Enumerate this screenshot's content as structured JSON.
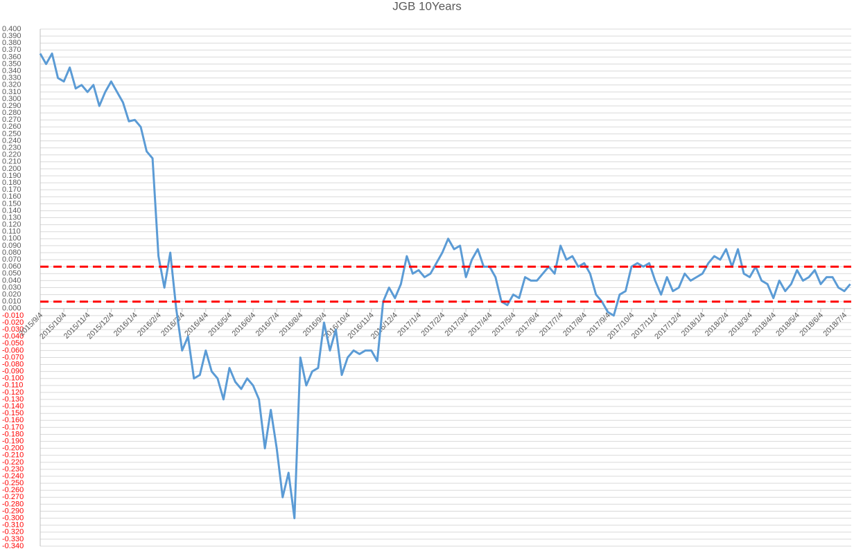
{
  "chart_data": {
    "type": "line",
    "title": "JGB 10Years",
    "categories": [
      "2015/9/4",
      null,
      null,
      null,
      "2015/10/4",
      null,
      null,
      null,
      "2015/11/4",
      null,
      null,
      null,
      "2015/12/4",
      null,
      null,
      null,
      "2016/1/4",
      null,
      null,
      null,
      "2016/2/4",
      null,
      null,
      null,
      "2016/3/4",
      null,
      null,
      null,
      "2016/4/4",
      null,
      null,
      null,
      "2016/5/4",
      null,
      null,
      null,
      "2016/6/4",
      null,
      null,
      null,
      "2016/7/4",
      null,
      null,
      null,
      "2016/8/4",
      null,
      null,
      null,
      "2016/9/4",
      null,
      null,
      null,
      "2016/10/4",
      null,
      null,
      null,
      "2016/11/4",
      null,
      null,
      null,
      "2016/12/4",
      null,
      null,
      null,
      "2017/1/4",
      null,
      null,
      null,
      "2017/2/4",
      null,
      null,
      null,
      "2017/3/4",
      null,
      null,
      null,
      "2017/4/4",
      null,
      null,
      null,
      "2017/5/4",
      null,
      null,
      null,
      "2017/6/4",
      null,
      null,
      null,
      "2017/7/4",
      null,
      null,
      null,
      "2017/8/4",
      null,
      null,
      null,
      "2017/9/4",
      null,
      null,
      null,
      "2017/10/4",
      null,
      null,
      null,
      "2017/11/4",
      null,
      null,
      null,
      "2017/12/4",
      null,
      null,
      null,
      "2018/1/4",
      null,
      null,
      null,
      "2018/2/4",
      null,
      null,
      null,
      "2018/3/4",
      null,
      null,
      null,
      "2018/4/4",
      null,
      null,
      null,
      "2018/5/4",
      null,
      null,
      null,
      "2018/6/4",
      null,
      null,
      null,
      "2018/7/4",
      null
    ],
    "series": [
      {
        "color": "#5b9bd5",
        "values": [
          0.365,
          0.35,
          0.365,
          0.33,
          0.325,
          0.345,
          0.315,
          0.32,
          0.31,
          0.32,
          0.29,
          0.31,
          0.325,
          0.31,
          0.295,
          0.268,
          0.27,
          0.26,
          0.225,
          0.215,
          0.075,
          0.03,
          0.08,
          0.0,
          -0.06,
          -0.04,
          -0.1,
          -0.095,
          -0.06,
          -0.09,
          -0.1,
          -0.13,
          -0.085,
          -0.105,
          -0.115,
          -0.1,
          -0.11,
          -0.13,
          -0.2,
          -0.145,
          -0.2,
          -0.27,
          -0.235,
          -0.3,
          -0.07,
          -0.11,
          -0.09,
          -0.085,
          -0.02,
          -0.06,
          -0.03,
          -0.095,
          -0.07,
          -0.06,
          -0.065,
          -0.06,
          -0.06,
          -0.075,
          0.01,
          0.03,
          0.015,
          0.035,
          0.075,
          0.05,
          0.055,
          0.045,
          0.05,
          0.065,
          0.08,
          0.1,
          0.085,
          0.09,
          0.045,
          0.07,
          0.085,
          0.06,
          0.06,
          0.045,
          0.01,
          0.005,
          0.02,
          0.015,
          0.045,
          0.04,
          0.04,
          0.05,
          0.06,
          0.05,
          0.09,
          0.07,
          0.075,
          0.06,
          0.065,
          0.05,
          0.02,
          0.01,
          -0.005,
          -0.01,
          0.02,
          0.025,
          0.06,
          0.065,
          0.06,
          0.065,
          0.04,
          0.02,
          0.045,
          0.025,
          0.03,
          0.05,
          0.04,
          0.045,
          0.05,
          0.065,
          0.075,
          0.07,
          0.085,
          0.06,
          0.085,
          0.05,
          0.045,
          0.06,
          0.04,
          0.035,
          0.015,
          0.04,
          0.025,
          0.035,
          0.055,
          0.04,
          0.045,
          0.055,
          0.035,
          0.045,
          0.045,
          0.03,
          0.025,
          0.035
        ]
      }
    ],
    "hlines": [
      {
        "value": 0.06,
        "color": "#ff0000"
      },
      {
        "value": 0.01,
        "color": "#ff0000"
      }
    ],
    "negative_tick_color": "#ff0000",
    "grid": true,
    "ylim": [
      -0.34,
      0.4
    ],
    "yticks": [
      {
        "value": 0.4,
        "label": "0.400"
      },
      {
        "value": 0.39,
        "label": "0.390"
      },
      {
        "value": 0.38,
        "label": "0.380"
      },
      {
        "value": 0.37,
        "label": "0.370"
      },
      {
        "value": 0.36,
        "label": "0.360"
      },
      {
        "value": 0.35,
        "label": "0.350"
      },
      {
        "value": 0.34,
        "label": "0.340"
      },
      {
        "value": 0.33,
        "label": "0.330"
      },
      {
        "value": 0.32,
        "label": "0.320"
      },
      {
        "value": 0.31,
        "label": "0.310"
      },
      {
        "value": 0.3,
        "label": "0.300"
      },
      {
        "value": 0.29,
        "label": "0.290"
      },
      {
        "value": 0.28,
        "label": "0.280"
      },
      {
        "value": 0.27,
        "label": "0.270"
      },
      {
        "value": 0.26,
        "label": "0.260"
      },
      {
        "value": 0.25,
        "label": "0.250"
      },
      {
        "value": 0.24,
        "label": "0.240"
      },
      {
        "value": 0.23,
        "label": "0.230"
      },
      {
        "value": 0.22,
        "label": "0.220"
      },
      {
        "value": 0.21,
        "label": "0.210"
      },
      {
        "value": 0.2,
        "label": "0.200"
      },
      {
        "value": 0.19,
        "label": "0.190"
      },
      {
        "value": 0.18,
        "label": "0.180"
      },
      {
        "value": 0.17,
        "label": "0.170"
      },
      {
        "value": 0.16,
        "label": "0.160"
      },
      {
        "value": 0.15,
        "label": "0.150"
      },
      {
        "value": 0.14,
        "label": "0.140"
      },
      {
        "value": 0.13,
        "label": "0.130"
      },
      {
        "value": 0.12,
        "label": "0.120"
      },
      {
        "value": 0.11,
        "label": "0.110"
      },
      {
        "value": 0.1,
        "label": "0.100"
      },
      {
        "value": 0.09,
        "label": "0.090"
      },
      {
        "value": 0.08,
        "label": "0.080"
      },
      {
        "value": 0.07,
        "label": "0.070"
      },
      {
        "value": 0.06,
        "label": "0.060"
      },
      {
        "value": 0.05,
        "label": "0.050"
      },
      {
        "value": 0.04,
        "label": "0.040"
      },
      {
        "value": 0.03,
        "label": "0.030"
      },
      {
        "value": 0.02,
        "label": "0.020"
      },
      {
        "value": 0.01,
        "label": "0.010"
      },
      {
        "value": 0,
        "label": "0.000"
      },
      {
        "value": -0.01,
        "label": "-0.010"
      },
      {
        "value": -0.02,
        "label": "-0.020"
      },
      {
        "value": -0.03,
        "label": "-0.030"
      },
      {
        "value": -0.04,
        "label": "-0.040"
      },
      {
        "value": -0.05,
        "label": "-0.050"
      },
      {
        "value": -0.06,
        "label": "-0.060"
      },
      {
        "value": -0.07,
        "label": "-0.070"
      },
      {
        "value": -0.08,
        "label": "-0.080"
      },
      {
        "value": -0.09,
        "label": "-0.090"
      },
      {
        "value": -0.1,
        "label": "-0.100"
      },
      {
        "value": -0.11,
        "label": "-0.110"
      },
      {
        "value": -0.12,
        "label": "-0.120"
      },
      {
        "value": -0.13,
        "label": "-0.130"
      },
      {
        "value": -0.14,
        "label": "-0.140"
      },
      {
        "value": -0.15,
        "label": "-0.150"
      },
      {
        "value": -0.16,
        "label": "-0.160"
      },
      {
        "value": -0.17,
        "label": "-0.170"
      },
      {
        "value": -0.18,
        "label": "-0.180"
      },
      {
        "value": -0.19,
        "label": "-0.190"
      },
      {
        "value": -0.2,
        "label": "-0.200"
      },
      {
        "value": -0.21,
        "label": "-0.210"
      },
      {
        "value": -0.22,
        "label": "-0.220"
      },
      {
        "value": -0.23,
        "label": "-0.230"
      },
      {
        "value": -0.24,
        "label": "-0.240"
      },
      {
        "value": -0.25,
        "label": "-0.250"
      },
      {
        "value": -0.26,
        "label": "-0.260"
      },
      {
        "value": -0.27,
        "label": "-0.270"
      },
      {
        "value": -0.28,
        "label": "-0.280"
      },
      {
        "value": -0.29,
        "label": "-0.290"
      },
      {
        "value": -0.3,
        "label": "-0.300"
      },
      {
        "value": -0.31,
        "label": "-0.310"
      },
      {
        "value": -0.32,
        "label": "-0.320"
      },
      {
        "value": -0.33,
        "label": "-0.330"
      },
      {
        "value": -0.34,
        "label": "-0.340"
      }
    ]
  }
}
